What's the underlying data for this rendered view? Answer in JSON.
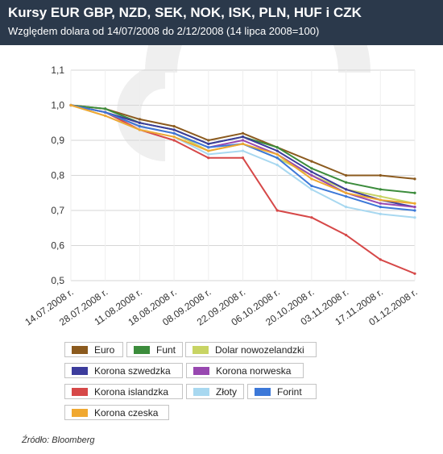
{
  "header": {
    "title": "Kursy EUR GBP, NZD, SEK, NOK, ISK, PLN, HUF i CZK",
    "subtitle": "Względem dolara od 14/07/2008 do 2/12/2008 (14 lipca 2008=100)"
  },
  "source": "Źródło: Bloomberg",
  "chart_data": {
    "type": "line",
    "title": "Kursy EUR GBP, NZD, SEK, NOK, ISK, PLN, HUF i CZK",
    "subtitle": "Względem dolara od 14/07/2008 do 2/12/2008 (14 lipca 2008=100)",
    "x": [
      "14.07.2008 r.",
      "28.07.2008 r.",
      "11.08.2008 r.",
      "18.08.2008 r.",
      "08.09.2008 r.",
      "22.09.2008 r.",
      "06.10.2008 r.",
      "20.10.2008 r.",
      "03.11.2008 r.",
      "17.11.2008 r.",
      "01.12.2008 r."
    ],
    "x_tick_labels": [
      "14.07.2008 r.",
      "28.07.2008 r.",
      "11.08.2008 r.",
      "18.08.2008 r.",
      "08.09.2008 r.",
      "22.09.2008 r.",
      "06.10.2008 r.",
      "20.10.2008 r.",
      "03.11.2008 r.",
      "17.11.2008 r.",
      "01.12.2008 r."
    ],
    "y_tick_labels": [
      "0,5",
      "0,6",
      "0,7",
      "0,8",
      "0,9",
      "1,0",
      "1,1"
    ],
    "ylim": [
      0.5,
      1.1
    ],
    "grid": true,
    "legend_position": "bottom",
    "series": [
      {
        "name": "Euro",
        "color": "#8b5a1e",
        "values": [
          1.0,
          0.99,
          0.96,
          0.94,
          0.9,
          0.92,
          0.88,
          0.84,
          0.8,
          0.8,
          0.79
        ]
      },
      {
        "name": "Funt",
        "color": "#3c8c3c",
        "values": [
          1.0,
          0.99,
          0.95,
          0.93,
          0.89,
          0.91,
          0.88,
          0.82,
          0.78,
          0.76,
          0.75
        ]
      },
      {
        "name": "Dolar nowozelandzki",
        "color": "#c8d464",
        "values": [
          1.0,
          0.98,
          0.94,
          0.92,
          0.87,
          0.89,
          0.85,
          0.8,
          0.76,
          0.74,
          0.72
        ]
      },
      {
        "name": "Korona szwedzka",
        "color": "#3c3c9c",
        "values": [
          1.0,
          0.98,
          0.95,
          0.93,
          0.89,
          0.91,
          0.87,
          0.81,
          0.76,
          0.73,
          0.71
        ]
      },
      {
        "name": "Korona norweska",
        "color": "#9848b0",
        "values": [
          1.0,
          0.98,
          0.94,
          0.92,
          0.88,
          0.9,
          0.86,
          0.8,
          0.75,
          0.72,
          0.71
        ]
      },
      {
        "name": "Korona islandzka",
        "color": "#d64848",
        "values": [
          1.0,
          0.98,
          0.93,
          0.9,
          0.85,
          0.85,
          0.7,
          0.68,
          0.63,
          0.56,
          0.52
        ]
      },
      {
        "name": "Złoty",
        "color": "#a8d8f0",
        "values": [
          1.0,
          0.97,
          0.93,
          0.91,
          0.86,
          0.87,
          0.83,
          0.76,
          0.71,
          0.69,
          0.68
        ]
      },
      {
        "name": "Forint",
        "color": "#3c78d8",
        "values": [
          1.0,
          0.98,
          0.94,
          0.92,
          0.88,
          0.89,
          0.85,
          0.77,
          0.74,
          0.71,
          0.7
        ]
      },
      {
        "name": "Korona czeska",
        "color": "#f0a830",
        "values": [
          1.0,
          0.97,
          0.93,
          0.91,
          0.87,
          0.89,
          0.86,
          0.79,
          0.75,
          0.73,
          0.72
        ]
      }
    ]
  }
}
